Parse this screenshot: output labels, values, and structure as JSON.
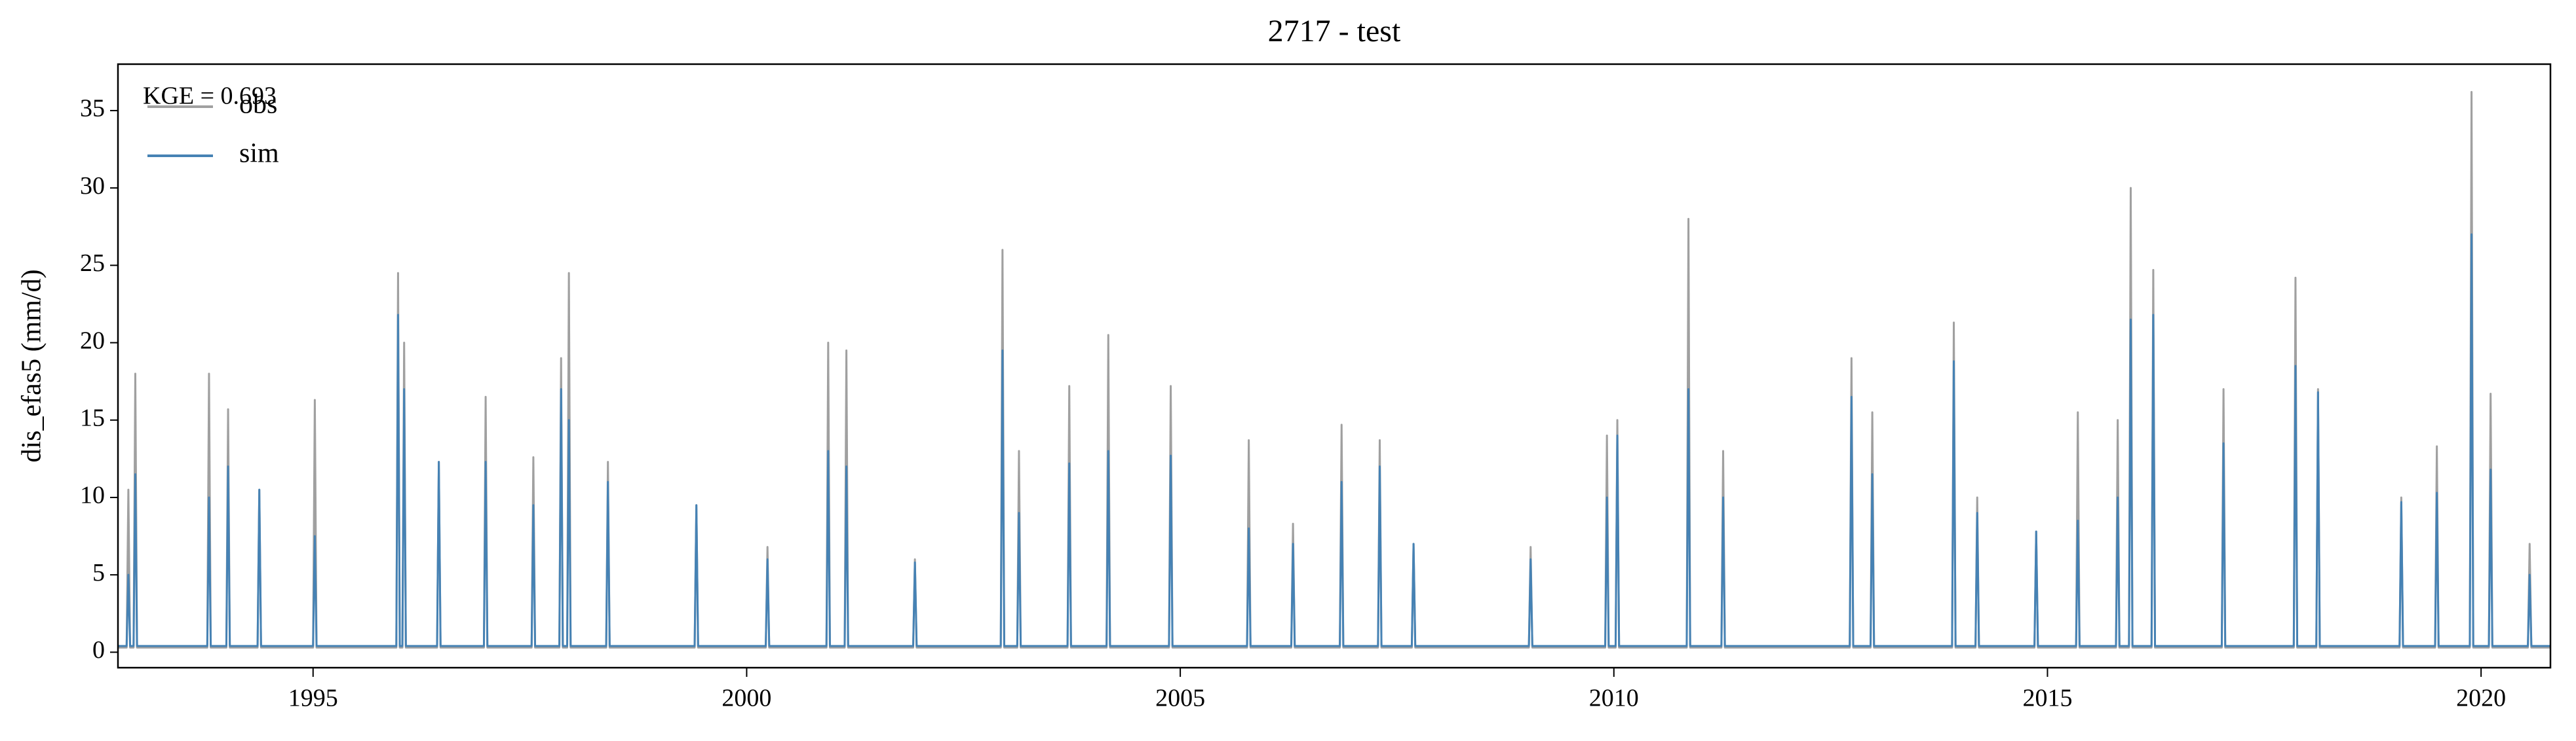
{
  "chart_data": {
    "type": "line",
    "title": "2717 - test",
    "ylabel": "dis_efas5 (mm/d)",
    "annotation": "KGE = 0.693",
    "legend": "upper left",
    "x": [
      1992.75,
      1992.85,
      1992.87,
      1992.89,
      1992.93,
      1992.95,
      1992.97,
      1993.78,
      1993.8,
      1993.82,
      1994.0,
      1994.02,
      1994.04,
      1994.36,
      1994.38,
      1994.4,
      1995.0,
      1995.02,
      1995.04,
      1995.96,
      1995.98,
      1996.0,
      1996.03,
      1996.05,
      1996.07,
      1996.43,
      1996.45,
      1996.47,
      1996.97,
      1996.99,
      1997.01,
      1997.52,
      1997.54,
      1997.56,
      1997.84,
      1997.86,
      1997.88,
      1997.93,
      1997.95,
      1997.97,
      1998.38,
      1998.4,
      1998.42,
      1999.4,
      1999.42,
      1999.44,
      2000.22,
      2000.24,
      2000.26,
      2000.92,
      2000.94,
      2000.96,
      2001.13,
      2001.15,
      2001.17,
      2001.92,
      2001.94,
      2001.96,
      2002.93,
      2002.95,
      2002.97,
      2003.12,
      2003.14,
      2003.16,
      2003.7,
      2003.72,
      2003.74,
      2004.15,
      2004.17,
      2004.19,
      2004.87,
      2004.89,
      2004.91,
      2005.77,
      2005.79,
      2005.81,
      2006.28,
      2006.3,
      2006.32,
      2006.84,
      2006.86,
      2006.88,
      2007.28,
      2007.3,
      2007.32,
      2007.67,
      2007.69,
      2007.71,
      2009.02,
      2009.04,
      2009.06,
      2009.9,
      2009.92,
      2009.94,
      2010.02,
      2010.04,
      2010.06,
      2010.84,
      2010.86,
      2010.88,
      2011.24,
      2011.26,
      2011.28,
      2012.72,
      2012.74,
      2012.76,
      2012.96,
      2012.98,
      2013.0,
      2013.9,
      2013.92,
      2013.94,
      2014.17,
      2014.19,
      2014.21,
      2014.85,
      2014.87,
      2014.89,
      2015.33,
      2015.35,
      2015.37,
      2015.79,
      2015.81,
      2015.83,
      2015.94,
      2015.96,
      2015.98,
      2016.2,
      2016.22,
      2016.24,
      2017.01,
      2017.03,
      2017.05,
      2017.84,
      2017.86,
      2017.88,
      2018.1,
      2018.12,
      2018.14,
      2019.06,
      2019.08,
      2019.1,
      2019.47,
      2019.49,
      2019.51,
      2019.87,
      2019.89,
      2019.91,
      2020.09,
      2020.11,
      2020.13,
      2020.54,
      2020.56,
      2020.58,
      2020.8
    ],
    "series": [
      {
        "name": "obs",
        "color": "#a0a0a0",
        "values": [
          0.3,
          0.3,
          10.5,
          0.3,
          0.3,
          18,
          0.3,
          0.3,
          18,
          0.3,
          0.3,
          15.7,
          0.3,
          0.3,
          10.5,
          0.3,
          0.3,
          16.3,
          0.3,
          0.3,
          24.5,
          0.3,
          0.3,
          20,
          0.3,
          0.3,
          12.3,
          0.3,
          0.3,
          16.5,
          0.3,
          0.3,
          12.6,
          0.3,
          0.3,
          19,
          0.3,
          0.3,
          24.5,
          0.3,
          0.3,
          12.3,
          0.3,
          0.3,
          9.5,
          0.3,
          0.3,
          6.8,
          0.3,
          0.3,
          20,
          0.3,
          0.3,
          19.5,
          0.3,
          0.3,
          6,
          0.3,
          0.3,
          26,
          0.3,
          0.3,
          13,
          0.3,
          0.3,
          17.2,
          0.3,
          0.3,
          20.5,
          0.3,
          0.3,
          17.2,
          0.3,
          0.3,
          13.7,
          0.3,
          0.3,
          8.3,
          0.3,
          0.3,
          14.7,
          0.3,
          0.3,
          13.7,
          0.3,
          0.3,
          7,
          0.3,
          0.3,
          6.8,
          0.3,
          0.3,
          14,
          0.3,
          0.3,
          15,
          0.3,
          0.3,
          28,
          0.3,
          0.3,
          13,
          0.3,
          0.3,
          19,
          0.3,
          0.3,
          15.5,
          0.3,
          0.3,
          21.3,
          0.3,
          0.3,
          10,
          0.3,
          0.3,
          7.8,
          0.3,
          0.3,
          15.5,
          0.3,
          0.3,
          15,
          0.3,
          0.3,
          30,
          0.3,
          0.3,
          24.7,
          0.3,
          0.3,
          17,
          0.3,
          0.3,
          24.2,
          0.3,
          0.3,
          17,
          0.3,
          0.3,
          10,
          0.3,
          0.3,
          13.3,
          0.3,
          0.3,
          36.2,
          0.3,
          0.3,
          16.7,
          0.3,
          0.3,
          7,
          0.3,
          0.3
        ]
      },
      {
        "name": "sim",
        "color": "#4682b4",
        "values": [
          0.4,
          0.4,
          5,
          0.4,
          0.4,
          11.5,
          0.4,
          0.4,
          10,
          0.4,
          0.4,
          12,
          0.4,
          0.4,
          10.5,
          0.4,
          0.4,
          7.5,
          0.4,
          0.4,
          21.8,
          0.4,
          0.4,
          17,
          0.4,
          0.4,
          12.3,
          0.4,
          0.4,
          12.3,
          0.4,
          0.4,
          9.5,
          0.4,
          0.4,
          17,
          0.4,
          0.4,
          15,
          0.4,
          0.4,
          11,
          0.4,
          0.4,
          9.5,
          0.4,
          0.4,
          6,
          0.4,
          0.4,
          13,
          0.4,
          0.4,
          12,
          0.4,
          0.4,
          5.8,
          0.4,
          0.4,
          19.5,
          0.4,
          0.4,
          9,
          0.4,
          0.4,
          12.2,
          0.4,
          0.4,
          13,
          0.4,
          0.4,
          12.7,
          0.4,
          0.4,
          8,
          0.4,
          0.4,
          7,
          0.4,
          0.4,
          11,
          0.4,
          0.4,
          12,
          0.4,
          0.4,
          7,
          0.4,
          0.4,
          6,
          0.4,
          0.4,
          10,
          0.4,
          0.4,
          14,
          0.4,
          0.4,
          17,
          0.4,
          0.4,
          10,
          0.4,
          0.4,
          16.5,
          0.4,
          0.4,
          11.5,
          0.4,
          0.4,
          18.8,
          0.4,
          0.4,
          9,
          0.4,
          0.4,
          7.8,
          0.4,
          0.4,
          8.5,
          0.4,
          0.4,
          10,
          0.4,
          0.4,
          21.5,
          0.4,
          0.4,
          21.8,
          0.4,
          0.4,
          13.5,
          0.4,
          0.4,
          18.5,
          0.4,
          0.4,
          16.8,
          0.4,
          0.4,
          9.7,
          0.4,
          0.4,
          10.3,
          0.4,
          0.4,
          27,
          0.4,
          0.4,
          11.8,
          0.4,
          0.4,
          5,
          0.4,
          0.4
        ]
      }
    ],
    "xlim": [
      1992.75,
      2020.8
    ],
    "xticks": [
      1995,
      2000,
      2005,
      2010,
      2015,
      2020
    ],
    "ylim": [
      -1,
      38
    ],
    "yticks": [
      0,
      5,
      10,
      15,
      20,
      25,
      30,
      35
    ]
  }
}
